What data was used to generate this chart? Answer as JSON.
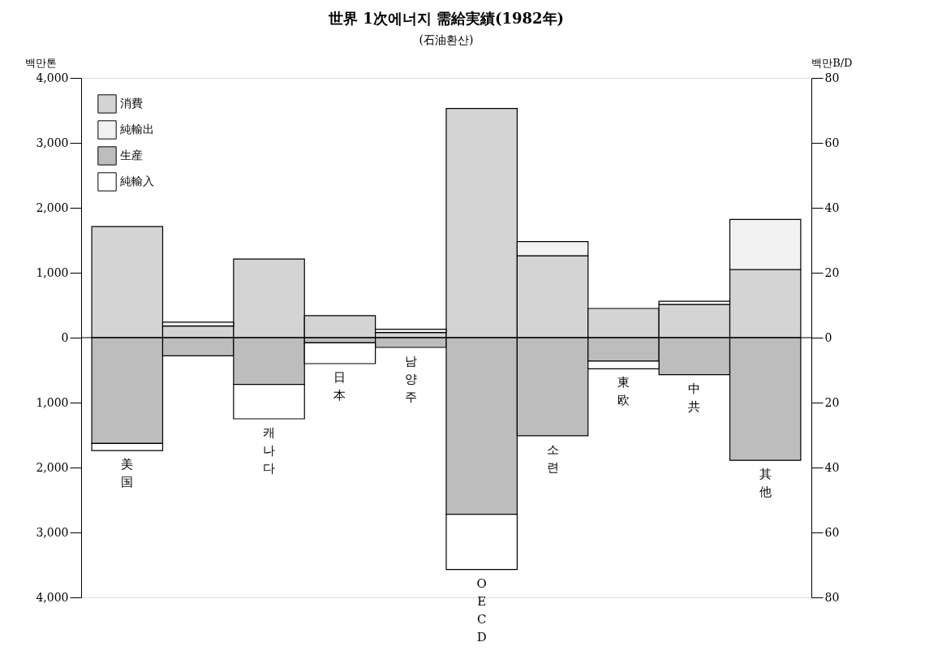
{
  "chart_data": {
    "type": "bar",
    "title": "世界 1次에너지 需給実績(1982年)",
    "subtitle": "(石油환산)",
    "ylabel": "백만톤",
    "y2label": "백만B/D",
    "categories": [
      "美国",
      null,
      "캐나다",
      "日本",
      "남양주",
      "OECD",
      "소련",
      "東欧",
      "中共",
      "其他"
    ],
    "stacked": true,
    "series": [
      {
        "name": "消費",
        "color": "#d4d4d4",
        "values": [
          1710,
          180,
          1210,
          340,
          80,
          3530,
          1260,
          450,
          510,
          1050
        ]
      },
      {
        "name": "純輸出",
        "color": "#f2f2f2",
        "values": [
          null,
          60,
          null,
          null,
          50,
          null,
          220,
          null,
          50,
          770
        ]
      },
      {
        "name": "生産",
        "color": "#bdbdbd",
        "values": [
          -1630,
          -280,
          -720,
          -80,
          -150,
          -2720,
          -1510,
          -360,
          -570,
          -1890
        ]
      },
      {
        "name": "純輸入",
        "color": "#ffffff",
        "values": [
          -110,
          null,
          -530,
          -320,
          null,
          -850,
          null,
          -120,
          null,
          null
        ]
      }
    ],
    "ylim": [
      -4000,
      4000
    ],
    "yticks": [
      {
        "value": -4000,
        "label": "4,000"
      },
      {
        "value": -3000,
        "label": "3,000"
      },
      {
        "value": -2000,
        "label": "2,000"
      },
      {
        "value": -1000,
        "label": "1,000"
      },
      0,
      {
        "value": 1000,
        "label": "1,000"
      },
      {
        "value": 2000,
        "label": "2,000"
      },
      {
        "value": 3000,
        "label": "3,000"
      },
      {
        "value": 4000,
        "label": "4,000"
      }
    ],
    "y2lim": [
      -80,
      80
    ],
    "y2ticks": [
      {
        "value": -80,
        "label": "80"
      },
      {
        "value": -60,
        "label": "60"
      },
      {
        "value": -40,
        "label": "40"
      },
      {
        "value": -20,
        "label": "20"
      },
      0,
      20,
      40,
      60,
      80
    ],
    "ref_lines": [
      {
        "axis": "y",
        "value": 0
      }
    ],
    "legend": "top left",
    "grid": false
  }
}
